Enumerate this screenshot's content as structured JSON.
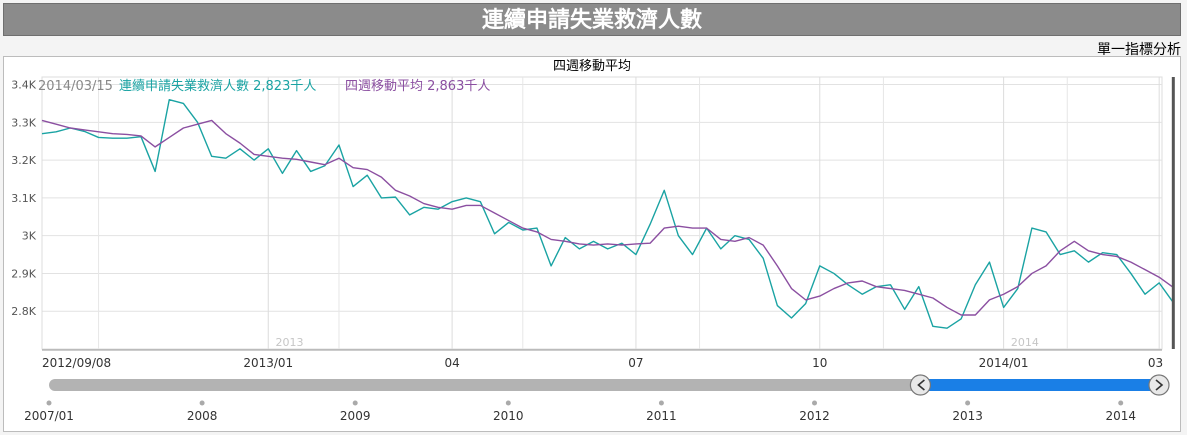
{
  "page_title": "連續申請失業救濟人數",
  "analysis_link": "單一指標分析",
  "chart_data": {
    "type": "line",
    "title": "四週移動平均",
    "readout": {
      "date": "2014/03/15",
      "series1_label": "連續申請失業救濟人數 2,823千人",
      "series2_label": "四週移動平均 2,863千人"
    },
    "yticks": [
      {
        "v": 2800,
        "label": "2.8K"
      },
      {
        "v": 2900,
        "label": "2.9K"
      },
      {
        "v": 3000,
        "label": "3K"
      },
      {
        "v": 3100,
        "label": "3.1K"
      },
      {
        "v": 3200,
        "label": "3.2K"
      },
      {
        "v": 3300,
        "label": "3.3K"
      },
      {
        "v": 3400,
        "label": "3.4K"
      }
    ],
    "ylim": [
      2700,
      3420
    ],
    "xlim": [
      0,
      79.2
    ],
    "xticks": [
      {
        "t": 0,
        "label": "2012/09/08"
      },
      {
        "t": 16,
        "label": "2013/01"
      },
      {
        "t": 29,
        "label": "04"
      },
      {
        "t": 42,
        "label": "07"
      },
      {
        "t": 55,
        "label": "10"
      },
      {
        "t": 68,
        "label": "2014/01"
      },
      {
        "t": 79,
        "label": "03"
      }
    ],
    "minor_grid": [
      4,
      21,
      34,
      46.5,
      59.5,
      72.5
    ],
    "year_labels": [
      {
        "t": 17.5,
        "label": "2013"
      },
      {
        "t": 69.5,
        "label": "2014"
      }
    ],
    "series": [
      {
        "name": "連續申請失業救濟人數",
        "color": "#1aa3a3",
        "values": [
          3270,
          3275,
          3285,
          3276,
          3260,
          3258,
          3258,
          3262,
          3170,
          3360,
          3350,
          3300,
          3210,
          3205,
          3230,
          3200,
          3230,
          3165,
          3225,
          3170,
          3185,
          3240,
          3130,
          3160,
          3100,
          3102,
          3055,
          3075,
          3070,
          3090,
          3100,
          3090,
          3005,
          3035,
          3015,
          3020,
          2920,
          2995,
          2965,
          2985,
          2965,
          2980,
          2950,
          3030,
          3120,
          3000,
          2950,
          3020,
          2965,
          3000,
          2990,
          2940,
          2815,
          2782,
          2820,
          2920,
          2900,
          2870,
          2845,
          2865,
          2870,
          2805,
          2865,
          2760,
          2755,
          2780,
          2870,
          2930,
          2810,
          2860,
          3020,
          3010,
          2950,
          2960,
          2930,
          2955,
          2950,
          2900,
          2845,
          2875,
          2823
        ]
      },
      {
        "name": "四週移動平均",
        "color": "#8b4fa1",
        "values": [
          3305,
          3295,
          3285,
          3280,
          3275,
          3270,
          3268,
          3264,
          3235,
          3260,
          3285,
          3295,
          3305,
          3270,
          3245,
          3215,
          3210,
          3205,
          3202,
          3195,
          3188,
          3205,
          3180,
          3175,
          3155,
          3120,
          3105,
          3085,
          3075,
          3070,
          3080,
          3080,
          3060,
          3040,
          3020,
          3010,
          2990,
          2985,
          2978,
          2975,
          2978,
          2975,
          2978,
          2980,
          3020,
          3025,
          3020,
          3020,
          2990,
          2985,
          2995,
          2975,
          2920,
          2860,
          2830,
          2840,
          2860,
          2875,
          2880,
          2865,
          2860,
          2855,
          2845,
          2835,
          2810,
          2790,
          2790,
          2830,
          2845,
          2865,
          2900,
          2920,
          2960,
          2985,
          2960,
          2950,
          2945,
          2930,
          2910,
          2890,
          2863
        ]
      }
    ]
  },
  "navigator": {
    "labels": [
      {
        "t": 0,
        "label": "2007/01"
      },
      {
        "t": 12,
        "label": "2008"
      },
      {
        "t": 24,
        "label": "2009"
      },
      {
        "t": 36,
        "label": "2010"
      },
      {
        "t": 48,
        "label": "2011"
      },
      {
        "t": 60,
        "label": "2012"
      },
      {
        "t": 72,
        "label": "2013"
      },
      {
        "t": 84,
        "label": "2014"
      }
    ],
    "range_months": 87,
    "selection": [
      68.3,
      87
    ],
    "nav_series_color": "#1a7fe6",
    "handle_left_icon": "chevron-left-icon",
    "handle_right_icon": "chevron-right-icon"
  }
}
